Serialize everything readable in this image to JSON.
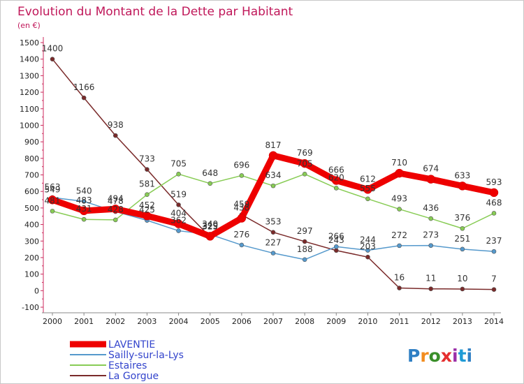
{
  "chart_data": {
    "type": "line",
    "title": "Evolution du Montant de la Dette par Habitant",
    "subtitle": "(en €)",
    "categories": [
      "2000",
      "2001",
      "2002",
      "2003",
      "2004",
      "2005",
      "2006",
      "2007",
      "2008",
      "2009",
      "2010",
      "2011",
      "2012",
      "2013",
      "2014"
    ],
    "y_ticks": [
      -100,
      0,
      100,
      200,
      300,
      400,
      500,
      600,
      700,
      800,
      900,
      1000,
      1100,
      1200,
      1300,
      1400,
      1500
    ],
    "ylim": [
      -100,
      1500
    ],
    "grid": false,
    "legend_position": "bottom-left",
    "series": [
      {
        "name": "LAVENTIE",
        "color": "#ee0000",
        "values": [
          549,
          483,
          494,
          452,
          404,
          329,
          438,
          817,
          769,
          666,
          612,
          710,
          674,
          633,
          593
        ]
      },
      {
        "name": "Sailly-sur-la-Lys",
        "color": "#5599cc",
        "values": [
          563,
          540,
          478,
          425,
          362,
          340,
          276,
          227,
          188,
          266,
          244,
          272,
          273,
          251,
          237
        ]
      },
      {
        "name": "Estaires",
        "color": "#88cc55",
        "values": [
          481,
          431,
          428,
          581,
          705,
          648,
          696,
          634,
          705,
          620,
          555,
          493,
          436,
          376,
          468
        ]
      },
      {
        "name": "La Gorgue",
        "color": "#7a2a2a",
        "values": [
          1400,
          1166,
          938,
          733,
          519,
          325,
          459,
          353,
          297,
          243,
          203,
          16,
          11,
          10,
          7
        ]
      }
    ]
  },
  "logo": {
    "text": "Proxiti"
  }
}
